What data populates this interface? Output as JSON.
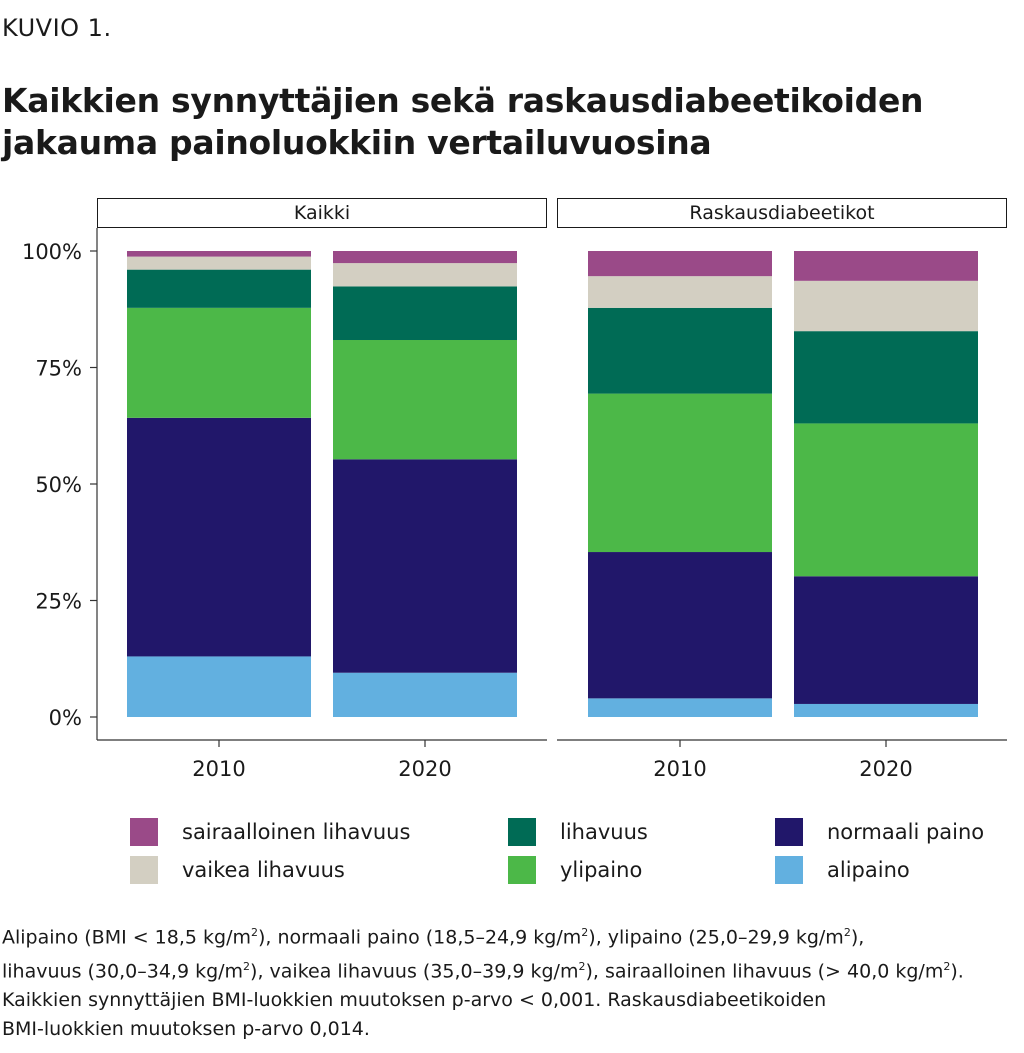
{
  "header": {
    "label": "KUVIO 1.",
    "title_lines": [
      "Kaikkien synnyttäjien sekä raskausdiabeetikoiden",
      "jakauma painoluokkiin vertailuvuosina"
    ]
  },
  "chart_data": {
    "type": "bar",
    "stacked": true,
    "facets": [
      "Kaikki",
      "Raskausdiabeetikot"
    ],
    "categories": [
      "2010",
      "2020"
    ],
    "y_ticks": [
      "0%",
      "25%",
      "50%",
      "75%",
      "100%"
    ],
    "ylim": [
      0,
      100
    ],
    "y_unit": "%",
    "grid": false,
    "legend_position": "bottom",
    "series": [
      {
        "name": "alipaino",
        "color": "#62b0e0",
        "values": {
          "Kaikki": [
            13,
            9.5
          ],
          "Raskausdiabeetikot": [
            4,
            2.8
          ]
        }
      },
      {
        "name": "normaali paino",
        "color": "#21176a",
        "values": {
          "Kaikki": [
            51.2,
            45.8
          ],
          "Raskausdiabeetikot": [
            31.4,
            27.4
          ]
        }
      },
      {
        "name": "ylipaino",
        "color": "#4cb848",
        "values": {
          "Kaikki": [
            23.6,
            25.6
          ],
          "Raskausdiabeetikot": [
            34,
            32.8
          ]
        }
      },
      {
        "name": "lihavuus",
        "color": "#006b55",
        "values": {
          "Kaikki": [
            8.2,
            11.5
          ],
          "Raskausdiabeetikot": [
            18.4,
            19.8
          ]
        }
      },
      {
        "name": "vaikea lihavuus",
        "color": "#d3cfc2",
        "values": {
          "Kaikki": [
            2.8,
            5
          ],
          "Raskausdiabeetikot": [
            6.8,
            10.8
          ]
        }
      },
      {
        "name": "sairaalloinen lihavuus",
        "color": "#9a4a88",
        "values": {
          "Kaikki": [
            1.2,
            2.6
          ],
          "Raskausdiabeetikot": [
            5.4,
            6.4
          ]
        }
      }
    ]
  },
  "legend": {
    "columns": [
      [
        "sairaalloinen lihavuus",
        "vaikea lihavuus"
      ],
      [
        "lihavuus",
        "ylipaino"
      ],
      [
        "normaali paino",
        "alipaino"
      ]
    ]
  },
  "notes": {
    "line1_parts": [
      "Alipaino (BMI < 18,5 kg/m",
      "2",
      "), normaali paino (18,5–24,9 kg/m",
      "2",
      "), ylipaino (25,0–29,9 kg/m",
      "2",
      "),"
    ],
    "line2_parts": [
      "lihavuus (30,0–34,9 kg/m",
      "2",
      "), vaikea lihavuus (35,0–39,9 kg/m",
      "2",
      "), sairaalloinen lihavuus (> 40,0 kg/m",
      "2",
      ")."
    ],
    "pvalue_lines": [
      "Kaikkien synnyttäjien BMI-luokkien muutoksen p-arvo < 0,001. Raskausdiabeetikoiden",
      "BMI-luokkien muutoksen p-arvo 0,014."
    ]
  }
}
